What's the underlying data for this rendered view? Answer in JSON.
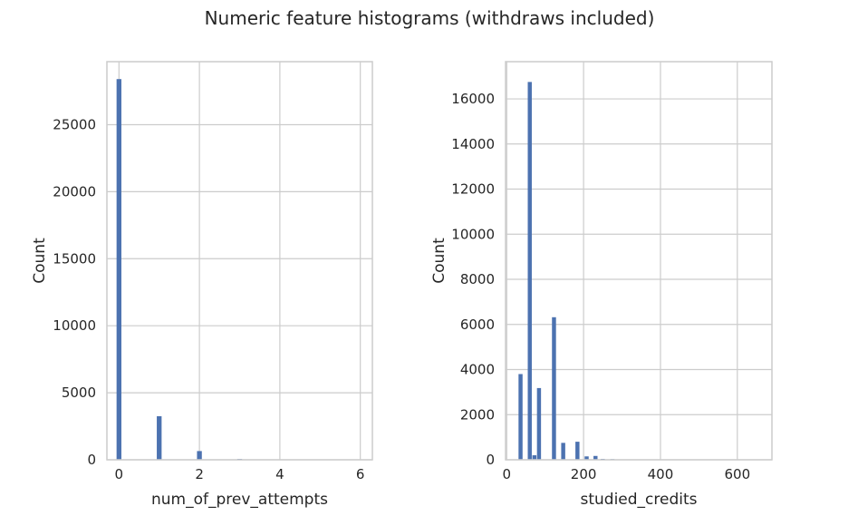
{
  "figure": {
    "title": "Numeric feature histograms (withdraws included)"
  },
  "colors": {
    "bar": "#4c72b0",
    "grid": "#cccccc",
    "text": "#262626"
  },
  "chart_data": [
    {
      "type": "bar",
      "xlabel": "num_of_prev_attempts",
      "ylabel": "Count",
      "xlim": [
        -0.3,
        6.3
      ],
      "ylim": [
        0,
        29700
      ],
      "xticks": [
        0,
        2,
        4,
        6
      ],
      "yticks": [
        0,
        5000,
        10000,
        15000,
        20000,
        25000
      ],
      "bin_width": 0.12,
      "grid": true,
      "bins": [
        {
          "x": 0,
          "count": 28400
        },
        {
          "x": 1,
          "count": 3250
        },
        {
          "x": 2,
          "count": 650
        },
        {
          "x": 3,
          "count": 60
        },
        {
          "x": 4,
          "count": 25
        },
        {
          "x": 5,
          "count": 8
        },
        {
          "x": 6,
          "count": 3
        }
      ]
    },
    {
      "type": "bar",
      "xlabel": "studied_credits",
      "ylabel": "Count",
      "xlim": [
        -3,
        690
      ],
      "ylim": [
        0,
        17650
      ],
      "xticks": [
        0,
        200,
        400,
        600
      ],
      "yticks": [
        0,
        2000,
        4000,
        6000,
        8000,
        10000,
        12000,
        14000,
        16000
      ],
      "bin_width": 10.5,
      "grid": true,
      "bins": [
        {
          "x": 36,
          "count": 3800
        },
        {
          "x": 60,
          "count": 16750
        },
        {
          "x": 72,
          "count": 200
        },
        {
          "x": 84,
          "count": 3180
        },
        {
          "x": 123,
          "count": 6320
        },
        {
          "x": 147,
          "count": 750
        },
        {
          "x": 184,
          "count": 800
        },
        {
          "x": 208,
          "count": 150
        },
        {
          "x": 231,
          "count": 170
        },
        {
          "x": 250,
          "count": 40
        },
        {
          "x": 275,
          "count": 30
        },
        {
          "x": 300,
          "count": 20
        },
        {
          "x": 330,
          "count": 15
        },
        {
          "x": 360,
          "count": 15
        },
        {
          "x": 390,
          "count": 10
        },
        {
          "x": 420,
          "count": 10
        },
        {
          "x": 450,
          "count": 8
        },
        {
          "x": 480,
          "count": 6
        },
        {
          "x": 510,
          "count": 5
        },
        {
          "x": 540,
          "count": 4
        },
        {
          "x": 570,
          "count": 4
        },
        {
          "x": 600,
          "count": 3
        },
        {
          "x": 630,
          "count": 3
        }
      ]
    }
  ]
}
